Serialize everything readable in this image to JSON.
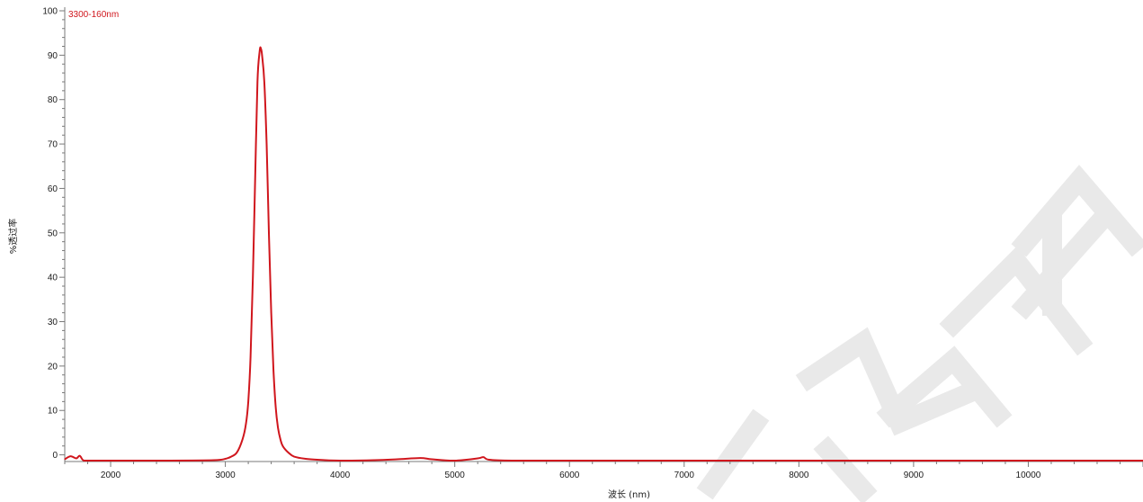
{
  "chart_data": {
    "type": "line",
    "xlabel": "波长 (nm)",
    "ylabel": "%透过率",
    "xlim": [
      1600,
      11000
    ],
    "ylim": [
      -1.5,
      100
    ],
    "x_ticks": [
      2000,
      3000,
      4000,
      5000,
      6000,
      7000,
      8000,
      9000,
      10000
    ],
    "y_ticks": [
      0,
      10,
      20,
      30,
      40,
      50,
      60,
      70,
      80,
      90,
      100
    ],
    "grid": false,
    "legend_position": "top-left",
    "series": [
      {
        "name": "3300-160nm",
        "color": "#d0161d",
        "x": [
          1600,
          1650,
          1700,
          1730,
          1760,
          1800,
          2000,
          2500,
          2900,
          3000,
          3050,
          3100,
          3150,
          3180,
          3200,
          3220,
          3240,
          3260,
          3280,
          3300,
          3310,
          3320,
          3340,
          3360,
          3380,
          3400,
          3420,
          3440,
          3460,
          3480,
          3500,
          3550,
          3600,
          3700,
          3800,
          4000,
          4300,
          4500,
          4700,
          4800,
          5000,
          5200,
          5250,
          5300,
          5500,
          6000,
          7000,
          8000,
          9000,
          10000,
          11000
        ],
        "y": [
          -1.0,
          -0.3,
          -0.8,
          -0.2,
          -1.2,
          -1.3,
          -1.3,
          -1.3,
          -1.2,
          -0.9,
          -0.4,
          0.5,
          3.5,
          7.0,
          12.0,
          22.0,
          40.0,
          62.0,
          84.0,
          91.0,
          91.5,
          90.0,
          84.0,
          70.0,
          50.0,
          32.0,
          19.0,
          10.5,
          6.0,
          3.5,
          2.0,
          0.5,
          -0.4,
          -0.9,
          -1.1,
          -1.3,
          -1.2,
          -1.0,
          -0.7,
          -1.0,
          -1.3,
          -0.8,
          -0.5,
          -1.1,
          -1.3,
          -1.3,
          -1.3,
          -1.3,
          -1.3,
          -1.3,
          -1.3
        ]
      }
    ]
  },
  "watermark": {
    "text": "有限公司",
    "color": "#e9e9e9"
  }
}
